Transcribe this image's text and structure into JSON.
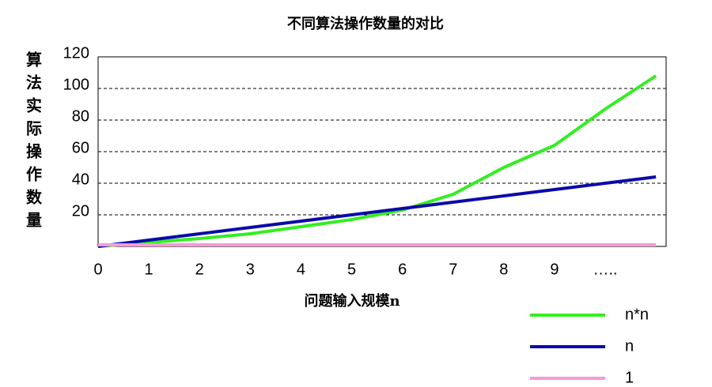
{
  "chart_data": {
    "type": "line",
    "title": "不同算法操作数量的对比",
    "xlabel": "问题输入规模n",
    "ylabel": "算法实际操作数量",
    "x": [
      0,
      1,
      2,
      3,
      4,
      5,
      6,
      7,
      8,
      9,
      10,
      11
    ],
    "series": [
      {
        "name": "n*n",
        "color": "#33ee22",
        "values": [
          0,
          2.5,
          5,
          8,
          12.5,
          17,
          23,
          33,
          50,
          64,
          87,
          108
        ]
      },
      {
        "name": "n",
        "color": "#0a0aa8",
        "values": [
          0,
          4,
          8,
          12,
          16,
          20,
          24,
          28,
          32,
          36,
          40,
          44
        ]
      },
      {
        "name": "1",
        "color": "#f59ad5",
        "values": [
          1,
          1,
          1,
          1,
          1,
          1,
          1,
          1,
          1,
          1,
          1,
          1
        ]
      }
    ],
    "xlim": [
      0,
      11.2
    ],
    "xticks": [
      0,
      1,
      2,
      3,
      4,
      5,
      6,
      7,
      8,
      9,
      {
        "value": 10,
        "label": "….."
      }
    ],
    "ylim": [
      0,
      120
    ],
    "yticks": [
      20,
      40,
      60,
      80,
      100,
      120
    ],
    "grid": true
  }
}
